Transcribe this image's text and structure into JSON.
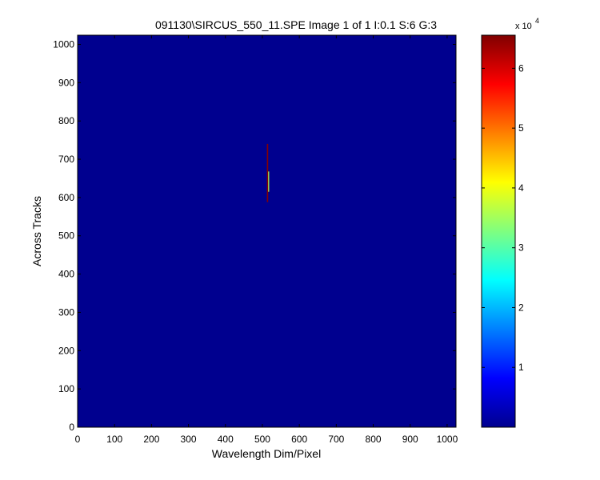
{
  "chart_data": {
    "type": "heatmap",
    "title": "091130\\SIRCUS_550_11.SPE  Image 1 of 1  I:0.1  S:6  G:3",
    "xlabel": "Wavelength Dim/Pixel",
    "ylabel": "Across Tracks",
    "xlim": [
      0,
      1024
    ],
    "ylim": [
      0,
      1024
    ],
    "x_ticks": [
      0,
      100,
      200,
      300,
      400,
      500,
      600,
      700,
      800,
      900,
      1000
    ],
    "y_ticks": [
      0,
      100,
      200,
      300,
      400,
      500,
      600,
      700,
      800,
      900,
      1000
    ],
    "background_value": 0,
    "colormap": "jet",
    "features": [
      {
        "x": 514,
        "y_start": 588,
        "y_end": 740,
        "value": 65000
      },
      {
        "x": 517,
        "y_start": 615,
        "y_end": 668,
        "value": 36000
      }
    ],
    "colorbar": {
      "range": [
        0,
        65535
      ],
      "ticks": [
        1,
        2,
        3,
        4,
        5,
        6
      ],
      "multiplier": "x 10",
      "exponent": "4"
    },
    "grid": false
  }
}
